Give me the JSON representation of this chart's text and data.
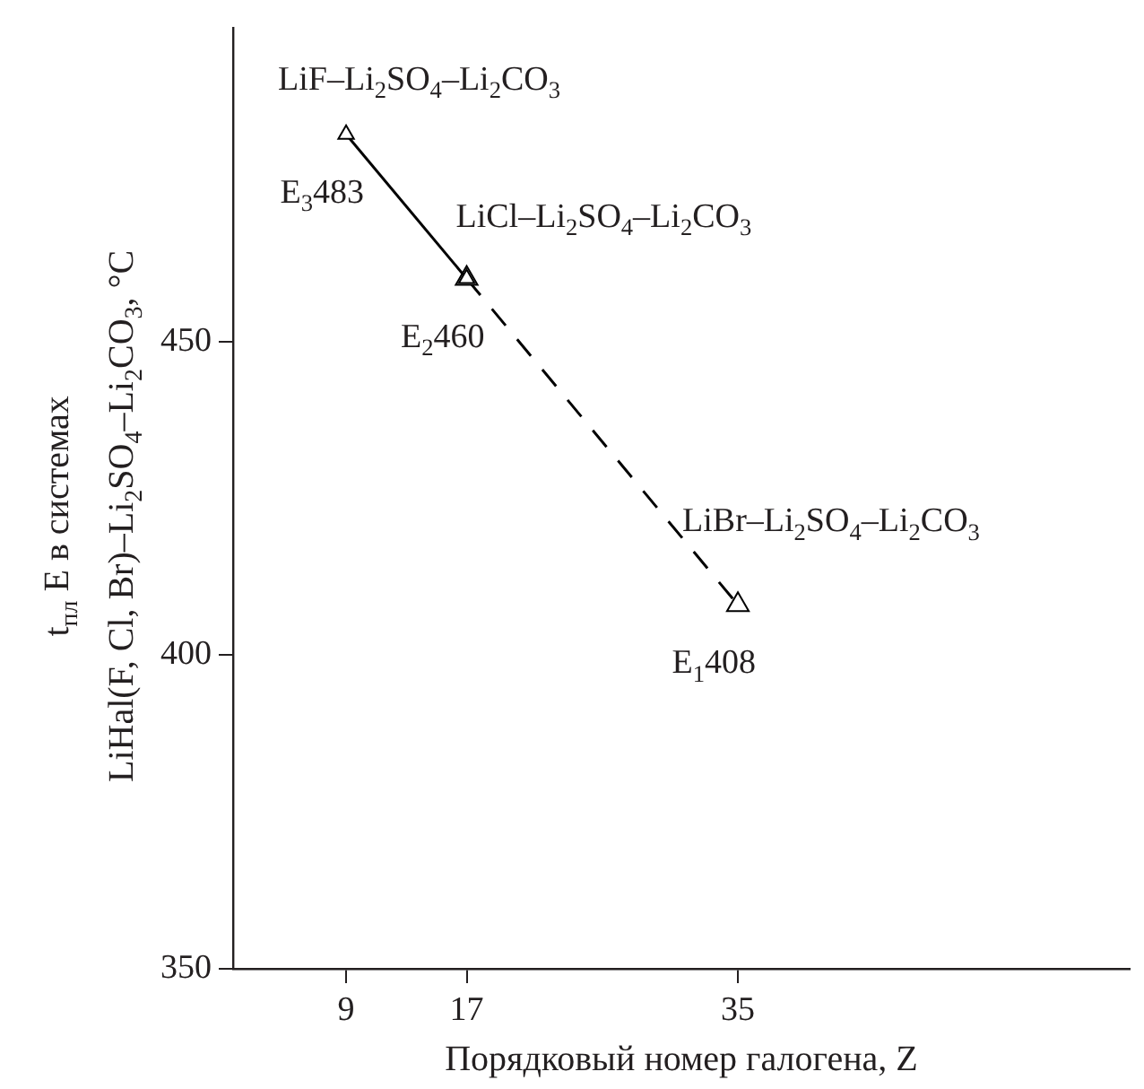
{
  "chart_data": {
    "type": "line",
    "xlabel": "Порядковый номер галогена, Z",
    "ylabel": "t$_{пл}$ E в системах\nLiHal(F, Cl, Br)–Li$_{2}$SO$_{4}$–Li$_{2}$CO$_{3}$, °C",
    "xlim": [
      1.5,
      61
    ],
    "xticks": [
      9,
      17,
      35
    ],
    "ylim": [
      350,
      500
    ],
    "yticks": [
      350,
      400,
      450
    ],
    "grid": false,
    "legend": false,
    "marker": "triangle",
    "series": [
      {
        "color": "#000000",
        "line_style": "solid",
        "x": [
          9,
          17
        ],
        "values": [
          483,
          460
        ],
        "value_labels": [
          "E$_{3}$483",
          "E$_{2}$460"
        ]
      },
      {
        "color": "#000000",
        "line_style": "dashed",
        "x": [
          17,
          35
        ],
        "values": [
          460,
          408
        ],
        "value_labels": [
          null,
          "E$_{1}$408"
        ]
      }
    ],
    "annotations": [
      {
        "text": "LiF–Li$_{2}$SO$_{4}$–Li$_{2}$CO$_{3}$",
        "x": 9,
        "y": 483
      },
      {
        "text": "LiCl–Li$_{2}$SO$_{4}$–Li$_{2}$CO$_{3}$",
        "x": 17,
        "y": 460
      },
      {
        "text": "LiBr–Li$_{2}$SO$_{4}$–Li$_{2}$CO$_{3}$",
        "x": 35,
        "y": 408
      }
    ]
  }
}
